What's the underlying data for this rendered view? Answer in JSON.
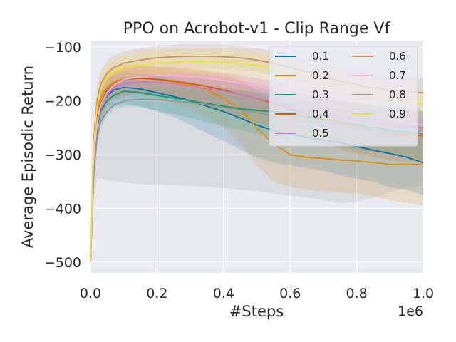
{
  "chart_data": {
    "type": "line",
    "title": "PPO on Acrobot-v1 - Clip Range Vf",
    "xlabel": "#Steps",
    "ylabel": "Average Episodic Return",
    "x_offset_label": "1e6",
    "xlim": [
      0,
      1.0
    ],
    "ylim": [
      -520,
      -88
    ],
    "x_ticks": [
      0.0,
      0.2,
      0.4,
      0.6,
      0.8,
      1.0
    ],
    "x_tick_labels": [
      "0.0",
      "0.2",
      "0.4",
      "0.6",
      "0.8",
      "1.0"
    ],
    "y_ticks": [
      -100,
      -200,
      -300,
      -400,
      -500
    ],
    "y_tick_labels": [
      "−100",
      "−200",
      "−300",
      "−400",
      "−500"
    ],
    "grid": true,
    "legend_position": "top-right",
    "legend_columns": 2,
    "x": [
      0,
      0.01,
      0.02,
      0.03,
      0.05,
      0.07,
      0.1,
      0.15,
      0.2,
      0.25,
      0.3,
      0.35,
      0.4,
      0.45,
      0.5,
      0.55,
      0.6,
      0.65,
      0.7,
      0.75,
      0.8,
      0.85,
      0.9,
      0.95,
      1.0
    ],
    "series": [
      {
        "name": "0.1",
        "color": "#0173b2",
        "values": [
          -500,
          -300,
          -235,
          -210,
          -190,
          -180,
          -175,
          -178,
          -185,
          -192,
          -200,
          -210,
          -220,
          -232,
          -245,
          -255,
          -262,
          -268,
          -273,
          -278,
          -285,
          -292,
          -298,
          -305,
          -315
        ],
        "band_upper": [
          -500,
          -260,
          -200,
          -180,
          -160,
          -152,
          -148,
          -150,
          -152,
          -160,
          -165,
          -170,
          -175,
          -180,
          -185,
          -190,
          -195,
          -200,
          -205,
          -210,
          -215,
          -220,
          -230,
          -240,
          -250
        ],
        "band_lower": [
          -500,
          -340,
          -270,
          -240,
          -220,
          -210,
          -205,
          -210,
          -220,
          -230,
          -245,
          -260,
          -275,
          -290,
          -305,
          -315,
          -320,
          -325,
          -330,
          -338,
          -345,
          -350,
          -360,
          -365,
          -375
        ]
      },
      {
        "name": "0.2",
        "color": "#de8f05",
        "values": [
          -500,
          -290,
          -225,
          -195,
          -175,
          -165,
          -158,
          -158,
          -160,
          -165,
          -170,
          -180,
          -195,
          -215,
          -250,
          -280,
          -300,
          -305,
          -307,
          -310,
          -312,
          -315,
          -318,
          -318,
          -318
        ],
        "band_upper": [
          -500,
          -250,
          -190,
          -165,
          -145,
          -138,
          -132,
          -135,
          -138,
          -140,
          -142,
          -145,
          -150,
          -160,
          -180,
          -210,
          -240,
          -255,
          -260,
          -260,
          -262,
          -265,
          -265,
          -260,
          -250
        ],
        "band_lower": [
          -500,
          -330,
          -260,
          -225,
          -205,
          -195,
          -190,
          -190,
          -195,
          -205,
          -215,
          -230,
          -250,
          -280,
          -320,
          -350,
          -360,
          -365,
          -368,
          -370,
          -372,
          -378,
          -385,
          -390,
          -395
        ]
      },
      {
        "name": "0.3",
        "color": "#029e73",
        "values": [
          -500,
          -320,
          -250,
          -220,
          -200,
          -190,
          -182,
          -185,
          -190,
          -195,
          -200,
          -205,
          -210,
          -215,
          -218,
          -220,
          -225,
          -230,
          -235,
          -240,
          -245,
          -250,
          -255,
          -258,
          -262
        ],
        "band_upper": [
          -500,
          -280,
          -215,
          -190,
          -175,
          -165,
          -160,
          -162,
          -165,
          -170,
          -172,
          -175,
          -178,
          -180,
          -182,
          -185,
          -188,
          -192,
          -196,
          -200,
          -204,
          -208,
          -212,
          -215,
          -218
        ],
        "band_lower": [
          -500,
          -360,
          -285,
          -250,
          -228,
          -215,
          -210,
          -212,
          -218,
          -225,
          -232,
          -240,
          -248,
          -255,
          -262,
          -268,
          -272,
          -276,
          -280,
          -285,
          -290,
          -295,
          -300,
          -305,
          -310
        ]
      },
      {
        "name": "0.4",
        "color": "#d55e00",
        "values": [
          -500,
          -300,
          -235,
          -205,
          -180,
          -168,
          -160,
          -158,
          -160,
          -163,
          -168,
          -173,
          -180,
          -188,
          -195,
          -205,
          -215,
          -225,
          -232,
          -240,
          -248,
          -255,
          -260,
          -263,
          -265
        ],
        "band_upper": [
          -500,
          -260,
          -200,
          -175,
          -155,
          -145,
          -138,
          -135,
          -136,
          -138,
          -140,
          -143,
          -148,
          -152,
          -158,
          -165,
          -172,
          -180,
          -188,
          -195,
          -202,
          -208,
          -214,
          -218,
          -220
        ],
        "band_lower": [
          -500,
          -340,
          -270,
          -235,
          -208,
          -195,
          -188,
          -185,
          -188,
          -192,
          -200,
          -210,
          -220,
          -230,
          -240,
          -250,
          -260,
          -270,
          -280,
          -290,
          -298,
          -304,
          -310,
          -314,
          -316
        ]
      },
      {
        "name": "0.5",
        "color": "#cc78bc",
        "values": [
          -500,
          -310,
          -245,
          -212,
          -188,
          -175,
          -168,
          -165,
          -165,
          -168,
          -172,
          -177,
          -182,
          -188,
          -195,
          -202,
          -210,
          -217,
          -224,
          -230,
          -236,
          -241,
          -245,
          -248,
          -250
        ],
        "band_upper": [
          -500,
          -270,
          -210,
          -182,
          -162,
          -152,
          -145,
          -142,
          -142,
          -145,
          -148,
          -152,
          -156,
          -162,
          -168,
          -175,
          -182,
          -189,
          -195,
          -200,
          -205,
          -210,
          -214,
          -217,
          -220
        ],
        "band_lower": [
          -500,
          -350,
          -280,
          -242,
          -215,
          -200,
          -192,
          -188,
          -190,
          -193,
          -197,
          -202,
          -208,
          -214,
          -222,
          -230,
          -238,
          -246,
          -253,
          -260,
          -267,
          -272,
          -276,
          -279,
          -282
        ]
      },
      {
        "name": "0.6",
        "color": "#ca9161",
        "values": [
          -500,
          -270,
          -200,
          -170,
          -148,
          -138,
          -130,
          -124,
          -120,
          -118,
          -117,
          -117,
          -118,
          -120,
          -124,
          -130,
          -138,
          -146,
          -155,
          -163,
          -170,
          -176,
          -180,
          -183,
          -185
        ],
        "band_upper": [
          -500,
          -240,
          -170,
          -145,
          -125,
          -115,
          -108,
          -102,
          -98,
          -96,
          -95,
          -95,
          -96,
          -98,
          -102,
          -108,
          -115,
          -122,
          -130,
          -137,
          -144,
          -150,
          -154,
          -156,
          -158
        ],
        "band_lower": [
          -500,
          -300,
          -230,
          -195,
          -172,
          -160,
          -152,
          -147,
          -143,
          -141,
          -140,
          -140,
          -141,
          -143,
          -147,
          -153,
          -161,
          -170,
          -180,
          -189,
          -196,
          -202,
          -206,
          -210,
          -212
        ]
      },
      {
        "name": "0.7",
        "color": "#fbafe4",
        "values": [
          -500,
          -305,
          -240,
          -208,
          -185,
          -170,
          -160,
          -155,
          -153,
          -153,
          -155,
          -158,
          -162,
          -167,
          -173,
          -180,
          -188,
          -196,
          -204,
          -212,
          -220,
          -228,
          -235,
          -240,
          -245
        ],
        "band_upper": [
          -500,
          -270,
          -205,
          -180,
          -160,
          -146,
          -137,
          -132,
          -130,
          -130,
          -132,
          -135,
          -139,
          -144,
          -150,
          -157,
          -165,
          -173,
          -181,
          -189,
          -197,
          -205,
          -212,
          -217,
          -222
        ],
        "band_lower": [
          -500,
          -340,
          -275,
          -236,
          -210,
          -194,
          -183,
          -178,
          -176,
          -176,
          -178,
          -181,
          -185,
          -190,
          -196,
          -203,
          -211,
          -219,
          -227,
          -235,
          -243,
          -251,
          -258,
          -263,
          -268
        ]
      },
      {
        "name": "0.8",
        "color": "#949494",
        "values": [
          -500,
          -330,
          -270,
          -240,
          -220,
          -208,
          -200,
          -197,
          -198,
          -200,
          -203,
          -207,
          -212,
          -217,
          -222,
          -228,
          -233,
          -238,
          -243,
          -248,
          -252,
          -255,
          -258,
          -260,
          -262
        ],
        "band_upper": [
          -500,
          -270,
          -210,
          -185,
          -170,
          -160,
          -155,
          -152,
          -152,
          -153,
          -155,
          -158,
          -162,
          -167,
          -172,
          -178,
          -183,
          -188,
          -193,
          -198,
          -203,
          -207,
          -210,
          -212,
          -214
        ],
        "band_lower": [
          -500,
          -390,
          -345,
          -345,
          -348,
          -350,
          -352,
          -355,
          -356,
          -357,
          -358,
          -360,
          -362,
          -365,
          -368,
          -372,
          -376,
          -380,
          -385,
          -390,
          -388,
          -380,
          -370,
          -362,
          -358
        ]
      },
      {
        "name": "0.9",
        "color": "#ece133",
        "values": [
          -500,
          -280,
          -210,
          -180,
          -158,
          -146,
          -138,
          -133,
          -130,
          -128,
          -127,
          -127,
          -128,
          -130,
          -134,
          -140,
          -147,
          -155,
          -163,
          -171,
          -179,
          -187,
          -194,
          -200,
          -205
        ],
        "band_upper": [
          -500,
          -250,
          -180,
          -153,
          -133,
          -122,
          -115,
          -110,
          -107,
          -105,
          -104,
          -104,
          -105,
          -107,
          -111,
          -117,
          -124,
          -132,
          -140,
          -148,
          -156,
          -164,
          -171,
          -177,
          -182
        ],
        "band_lower": [
          -500,
          -310,
          -240,
          -207,
          -183,
          -170,
          -161,
          -156,
          -153,
          -151,
          -150,
          -150,
          -151,
          -153,
          -157,
          -163,
          -170,
          -178,
          -186,
          -194,
          -202,
          -210,
          -217,
          -223,
          -228
        ]
      }
    ]
  }
}
